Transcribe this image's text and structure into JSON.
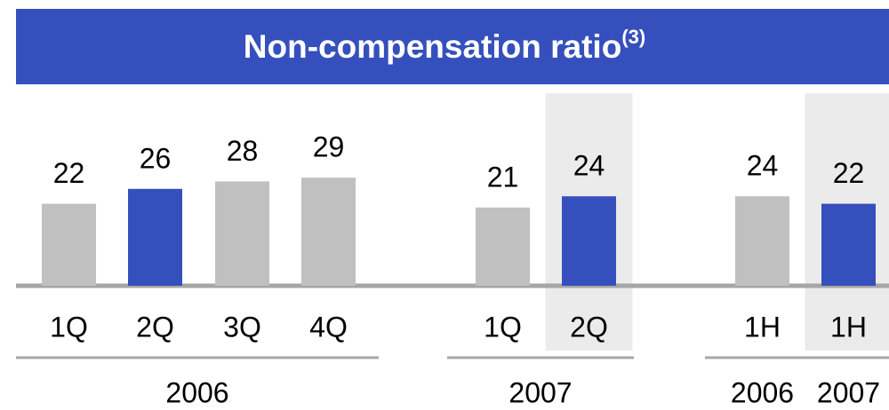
{
  "chart_data": {
    "type": "bar",
    "title": "Non-compensation ratio",
    "title_note": "(3)",
    "groups": [
      {
        "labels": [
          "2006"
        ],
        "categories": [
          "1Q",
          "2Q",
          "3Q",
          "4Q"
        ],
        "values": [
          22,
          26,
          28,
          29
        ],
        "colors": [
          "#c0c0c0",
          "#3550bd",
          "#c0c0c0",
          "#c0c0c0"
        ],
        "shaded": [
          false,
          false,
          false,
          false
        ]
      },
      {
        "labels": [
          "2007"
        ],
        "categories": [
          "1Q",
          "2Q"
        ],
        "values": [
          21,
          24
        ],
        "colors": [
          "#c0c0c0",
          "#3550bd"
        ],
        "shaded": [
          false,
          true
        ]
      },
      {
        "labels": [
          "2006",
          "2007"
        ],
        "categories": [
          "1H",
          "1H"
        ],
        "values": [
          24,
          22
        ],
        "colors": [
          "#c0c0c0",
          "#3550bd"
        ],
        "shaded": [
          false,
          true
        ]
      }
    ]
  }
}
